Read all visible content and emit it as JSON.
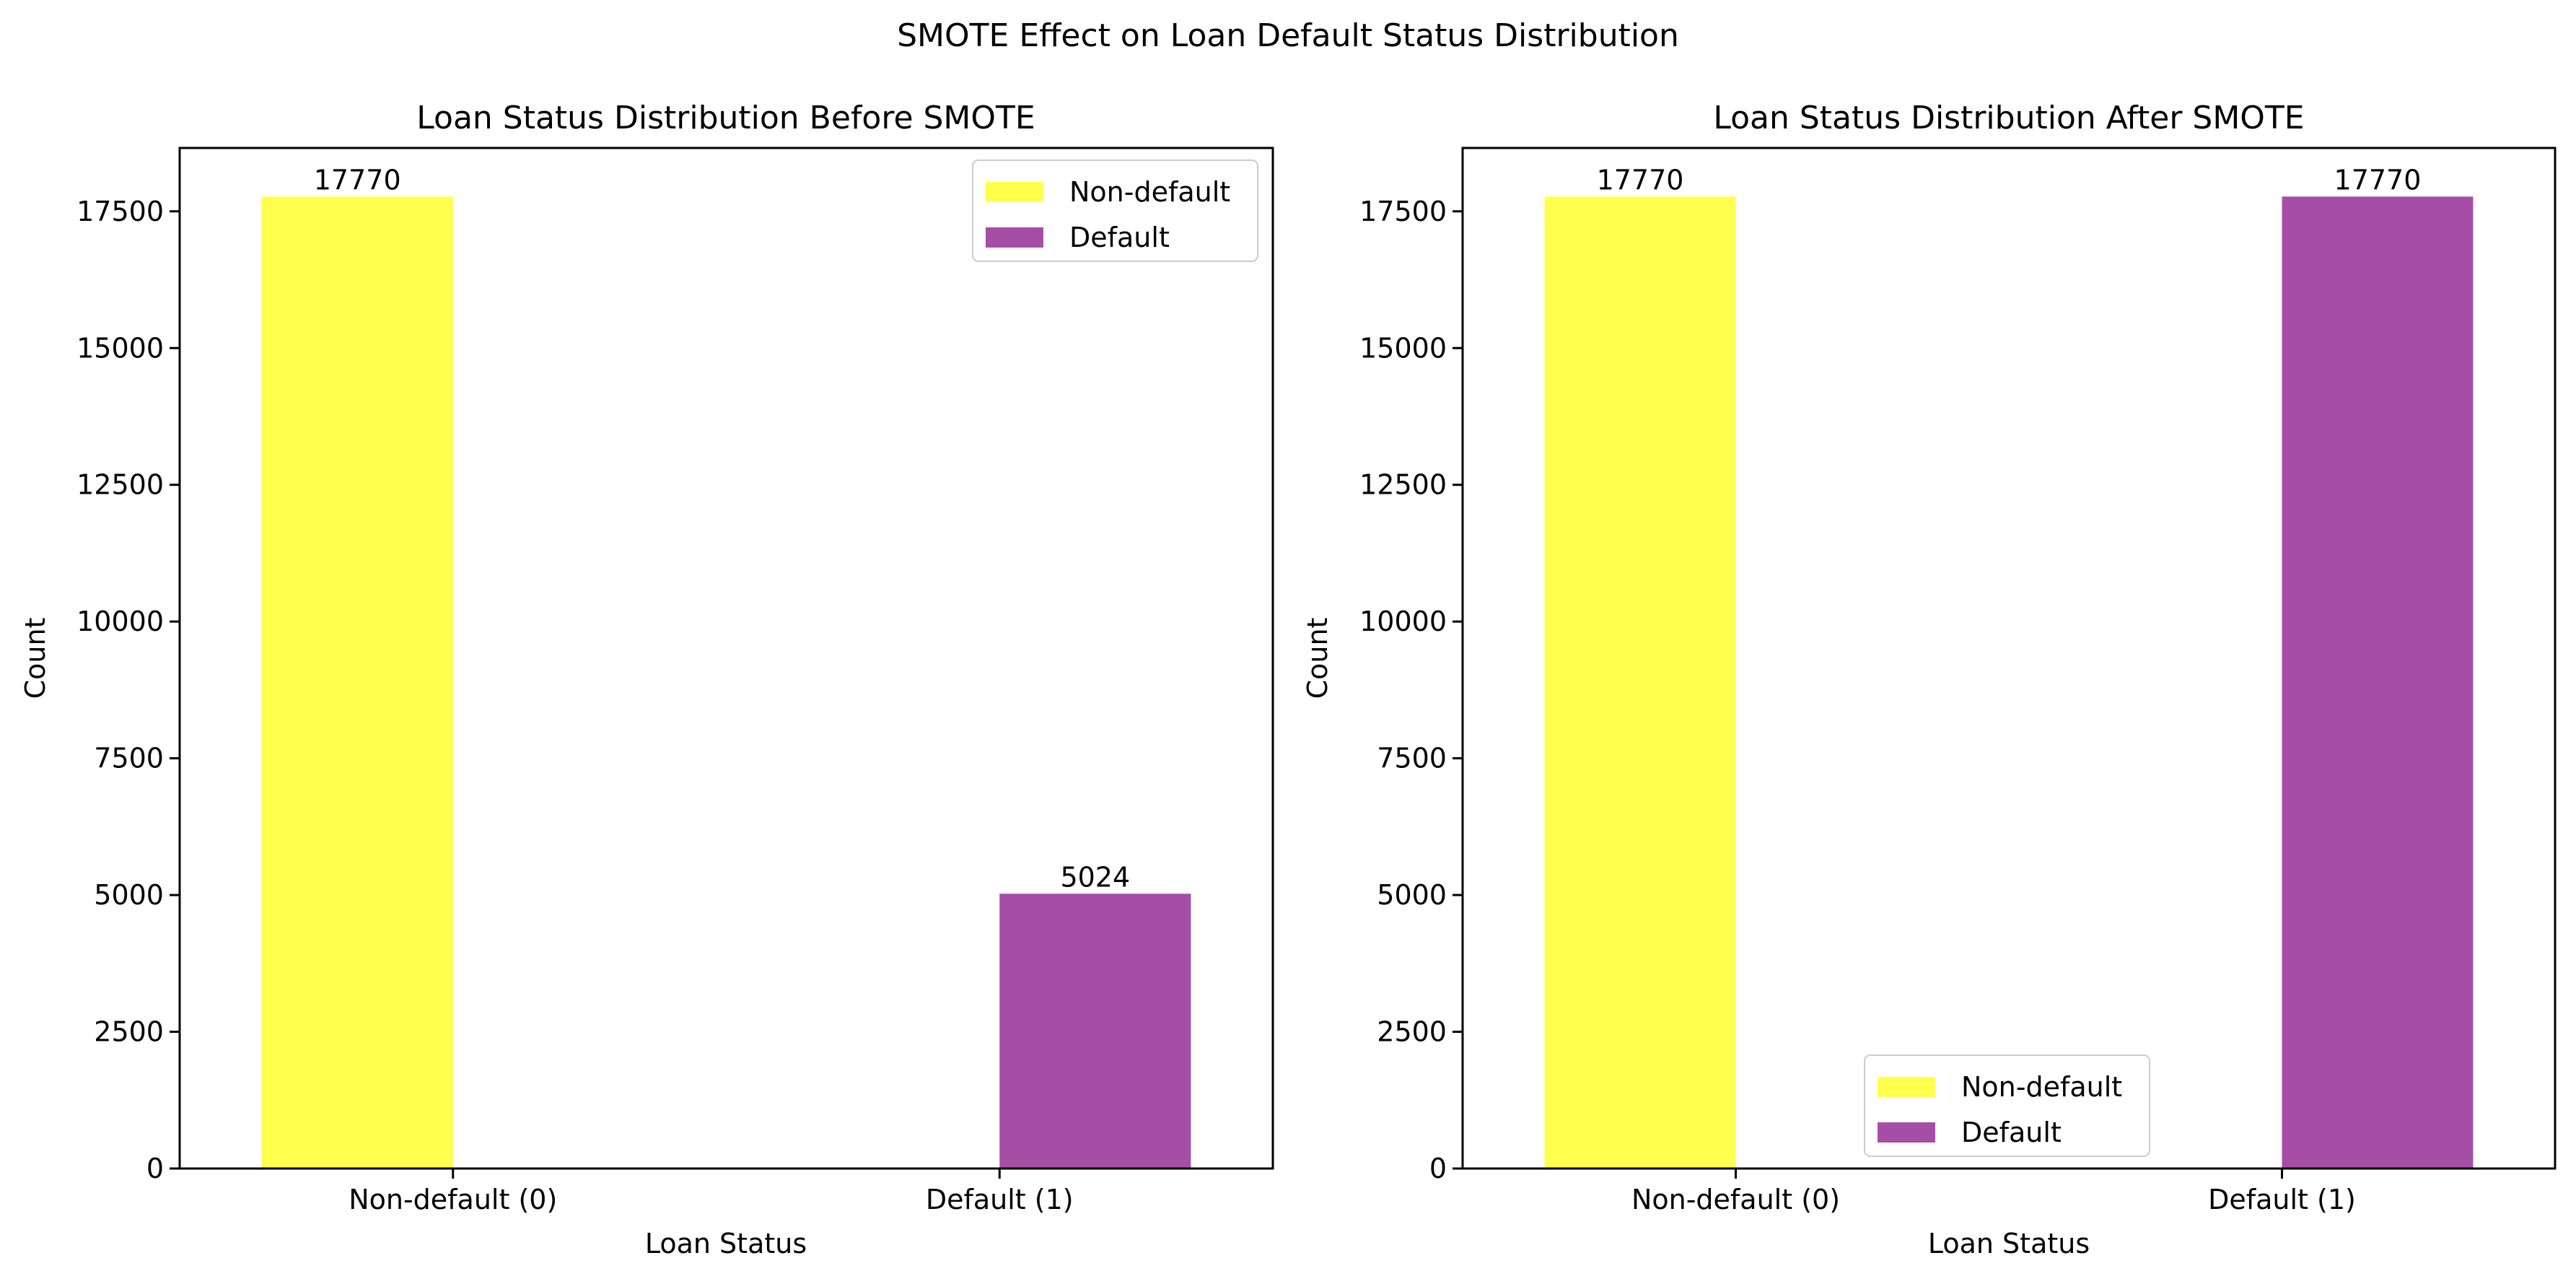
{
  "figure": {
    "title": "SMOTE Effect on Loan Default Status Distribution"
  },
  "chart_data": [
    {
      "type": "bar",
      "title": "Loan Status Distribution Before SMOTE",
      "xlabel": "Loan Status",
      "ylabel": "Count",
      "categories": [
        "Non-default (0)",
        "Default (1)"
      ],
      "series": [
        {
          "name": "Non-default",
          "values": [
            17770,
            0
          ],
          "color": "#ffff4d"
        },
        {
          "name": "Default",
          "values": [
            0,
            5024
          ],
          "color": "#a64ea6"
        }
      ],
      "bar_labels": [
        "17770",
        "5024"
      ],
      "ylim": [
        0,
        18658.5
      ],
      "yticks": [
        0,
        2500,
        5000,
        7500,
        10000,
        12500,
        15000,
        17500
      ],
      "grid": false,
      "legend_position": "upper right"
    },
    {
      "type": "bar",
      "title": "Loan Status Distribution After SMOTE",
      "xlabel": "Loan Status",
      "ylabel": "Count",
      "categories": [
        "Non-default (0)",
        "Default (1)"
      ],
      "series": [
        {
          "name": "Non-default",
          "values": [
            17770,
            0
          ],
          "color": "#ffff4d"
        },
        {
          "name": "Default",
          "values": [
            0,
            17770
          ],
          "color": "#a64ea6"
        }
      ],
      "bar_labels": [
        "17770",
        "17770"
      ],
      "ylim": [
        0,
        18658.5
      ],
      "yticks": [
        0,
        2500,
        5000,
        7500,
        10000,
        12500,
        15000,
        17500
      ],
      "grid": false,
      "legend_position": "lower center"
    }
  ]
}
